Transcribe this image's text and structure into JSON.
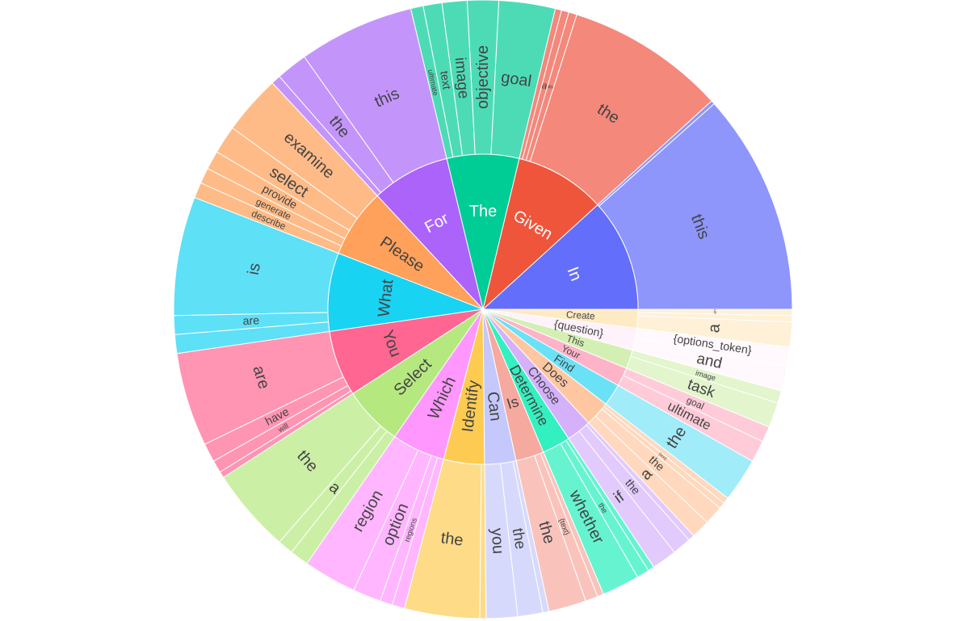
{
  "chart_data": {
    "type": "sunburst",
    "title": "",
    "roots": [
      {
        "label": "In",
        "value": 36,
        "color": "#636efa",
        "children": [
          {
            "label": "this",
            "value": 35.4,
            "color": "#8e96fb"
          },
          {
            "label": "",
            "value": 0.6,
            "color": "#8e96fb"
          }
        ]
      },
      {
        "label": "Given",
        "value": 29,
        "color": "#ef553b",
        "children": [
          {
            "label": "the",
            "value": 25.5,
            "color": "#f3887b"
          },
          {
            "label": "an",
            "value": 1.3,
            "color": "#f3887b"
          },
          {
            "label": "a",
            "value": 1.2,
            "color": "#f3887b"
          },
          {
            "label": "",
            "value": 1.0,
            "color": "#f3887b"
          }
        ]
      },
      {
        "label": "The",
        "value": 23,
        "color": "#00cc96",
        "children": [
          {
            "label": "goal",
            "value": 9,
            "color": "#4ddbb6"
          },
          {
            "label": "objective",
            "value": 5,
            "color": "#4ddbb6"
          },
          {
            "label": "image",
            "value": 4,
            "color": "#4ddbb6"
          },
          {
            "label": "text",
            "value": 3,
            "color": "#4ddbb6"
          },
          {
            "label": "ultimate",
            "value": 2,
            "color": "#4ddbb6"
          }
        ]
      },
      {
        "label": "For",
        "value": 25,
        "color": "#ab63fa",
        "children": [
          {
            "label": "this",
            "value": 18.5,
            "color": "#c395fb"
          },
          {
            "label": "the",
            "value": 5,
            "color": "#c395fb"
          },
          {
            "label": "",
            "value": 1.5,
            "color": "#c395fb"
          }
        ]
      },
      {
        "label": "Please",
        "value": 22,
        "color": "#ffa15a",
        "children": [
          {
            "label": "examine",
            "value": 9.5,
            "color": "#ffbb87"
          },
          {
            "label": "select",
            "value": 4.5,
            "color": "#ffbb87"
          },
          {
            "label": "provide",
            "value": 3,
            "color": "#ffbb87"
          },
          {
            "label": "generate",
            "value": 2.5,
            "color": "#ffbb87"
          },
          {
            "label": "describe",
            "value": 2.5,
            "color": "#ffbb87"
          }
        ]
      },
      {
        "label": "What",
        "value": 25,
        "color": "#19d3f3",
        "children": [
          {
            "label": "is",
            "value": 19,
            "color": "#5ee0f7"
          },
          {
            "label": "are",
            "value": 3,
            "color": "#5ee0f7"
          },
          {
            "label": "",
            "value": 3,
            "color": "#5ee0f7"
          }
        ]
      },
      {
        "label": "You",
        "value": 21,
        "color": "#ff6692",
        "children": [
          {
            "label": "are",
            "value": 15,
            "color": "#ff94b3"
          },
          {
            "label": "have",
            "value": 3,
            "color": "#ff94b3"
          },
          {
            "label": "will",
            "value": 2,
            "color": "#ff94b3"
          },
          {
            "label": "",
            "value": 1,
            "color": "#ff94b3"
          }
        ]
      },
      {
        "label": "Select",
        "value": 19,
        "color": "#b6e880",
        "children": [
          {
            "label": "the",
            "value": 13.5,
            "color": "#ccefa6"
          },
          {
            "label": "a",
            "value": 2.5,
            "color": "#ccefa6"
          },
          {
            "label": "",
            "value": 3,
            "color": "#ccefa6"
          }
        ]
      },
      {
        "label": "Which",
        "value": 17,
        "color": "#ff97ff",
        "children": [
          {
            "label": "region",
            "value": 8.5,
            "color": "#ffb6ff"
          },
          {
            "label": "option",
            "value": 4.5,
            "color": "#ffb6ff"
          },
          {
            "label": "regions",
            "value": 2,
            "color": "#ffb6ff"
          },
          {
            "label": "",
            "value": 2,
            "color": "#ffb6ff"
          }
        ]
      },
      {
        "label": "Identify",
        "value": 13,
        "color": "#fecb52",
        "children": [
          {
            "label": "the",
            "value": 12,
            "color": "#fedb86"
          },
          {
            "label": "",
            "value": 1,
            "color": "#fedb86"
          }
        ]
      },
      {
        "label": "Can",
        "value": 10,
        "color": "#c4c8fb",
        "children": [
          {
            "label": "you",
            "value": 5,
            "color": "#d7d9fc"
          },
          {
            "label": "the",
            "value": 4,
            "color": "#d7d9fc"
          },
          {
            "label": "",
            "value": 1,
            "color": "#d7d9fc"
          }
        ]
      },
      {
        "label": "Is",
        "value": 9,
        "color": "#f6a99f",
        "children": [
          {
            "label": "the",
            "value": 6,
            "color": "#f9c3bc"
          },
          {
            "label": "{text}",
            "value": 2,
            "color": "#f9c3bc"
          },
          {
            "label": "",
            "value": 1,
            "color": "#f9c3bc"
          }
        ]
      },
      {
        "label": "Determine",
        "value": 9,
        "color": "#33f0c0",
        "children": [
          {
            "label": "whether",
            "value": 6,
            "color": "#66f4d0"
          },
          {
            "label": "the",
            "value": 2,
            "color": "#66f4d0"
          },
          {
            "label": "",
            "value": 1,
            "color": "#66f4d0"
          }
        ]
      },
      {
        "label": "Choose",
        "value": 8,
        "color": "#d5b1fc",
        "children": [
          {
            "label": "if",
            "value": 4,
            "color": "#e2cafd"
          },
          {
            "label": "the",
            "value": 3,
            "color": "#e2cafd"
          },
          {
            "label": "",
            "value": 1,
            "color": "#e2cafd"
          }
        ]
      },
      {
        "label": "Does",
        "value": 8,
        "color": "#ffc7a1",
        "children": [
          {
            "label": "a",
            "value": 3,
            "color": "#ffd8bd"
          },
          {
            "label": "the",
            "value": 3,
            "color": "#ffd8bd"
          },
          {
            "label": "{text}",
            "value": 1,
            "color": "#ffd8bd"
          },
          {
            "label": "",
            "value": 1,
            "color": "#ffd8bd"
          }
        ]
      },
      {
        "label": "Find",
        "value": 7,
        "color": "#6be1f6",
        "children": [
          {
            "label": "the",
            "value": 7,
            "color": "#a1ecf9"
          }
        ]
      },
      {
        "label": "Your",
        "value": 6,
        "color": "#ffb3c8",
        "children": [
          {
            "label": "ultimate",
            "value": 3.5,
            "color": "#ffcbd9"
          },
          {
            "label": "goal",
            "value": 2.5,
            "color": "#ffcbd9"
          }
        ]
      },
      {
        "label": "This",
        "value": 6,
        "color": "#d3efb3",
        "children": [
          {
            "label": "task",
            "value": 4,
            "color": "#e2f5cd"
          },
          {
            "label": "image",
            "value": 2,
            "color": "#e2f5cd"
          }
        ]
      },
      {
        "label": "{question}",
        "value": 7,
        "color": "#fff2fb",
        "children": [
          {
            "label": "and",
            "value": 4,
            "color": "#fff8fd"
          },
          {
            "label": "{options_token}",
            "value": 3,
            "color": "#fff8fd"
          }
        ]
      },
      {
        "label": "Create",
        "value": 6,
        "color": "#feeac3",
        "children": [
          {
            "label": "a",
            "value": 4,
            "color": "#fef1d8"
          },
          {
            "label": "",
            "value": 1,
            "color": "#fef1d8"
          },
          {
            "label": "an",
            "value": 1,
            "color": "#fef1d8"
          }
        ]
      }
    ]
  }
}
